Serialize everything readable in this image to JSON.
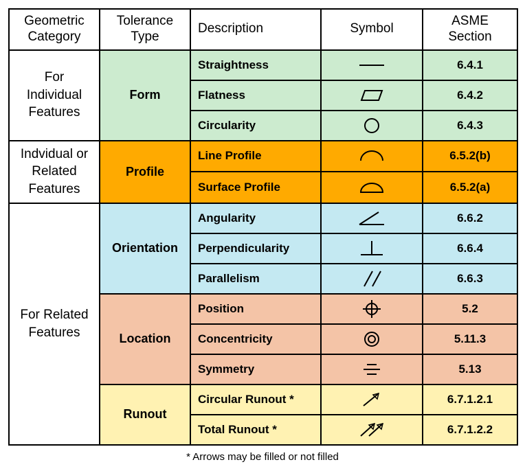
{
  "header": {
    "category": "Geometric Category",
    "type": "Tolerance Type",
    "description": "Description",
    "symbol": "Symbol",
    "section": "ASME Section"
  },
  "colors": {
    "green": "#ccebcf",
    "orange": "#ffaa00",
    "lightblue": "#c4e9f2",
    "peach": "#f4c4a7",
    "yellow": "#fff2b2",
    "header_bg": "#ffffff",
    "category_bg": "#ffffff",
    "border": "#000000",
    "text": "#000000"
  },
  "groups": [
    {
      "category": "For Individual Features",
      "type": "Form",
      "color_key": "green",
      "rows": [
        {
          "desc": "Straightness",
          "symbol": "straightness",
          "section": "6.4.1"
        },
        {
          "desc": "Flatness",
          "symbol": "flatness",
          "section": "6.4.2"
        },
        {
          "desc": "Circularity",
          "symbol": "circularity",
          "section": "6.4.3"
        }
      ]
    },
    {
      "category": "Indvidual or Related Features",
      "type": "Profile",
      "color_key": "orange",
      "rows": [
        {
          "desc": "Line Profile",
          "symbol": "lineprofile",
          "section": "6.5.2(b)"
        },
        {
          "desc": "Surface Profile",
          "symbol": "surfaceprofile",
          "section": "6.5.2(a)"
        }
      ]
    },
    {
      "category": "For Related Features",
      "types": [
        {
          "type": "Orientation",
          "color_key": "lightblue",
          "rows": [
            {
              "desc": "Angularity",
              "symbol": "angularity",
              "section": "6.6.2"
            },
            {
              "desc": "Perpendicularity",
              "symbol": "perpendicularity",
              "section": "6.6.4"
            },
            {
              "desc": "Parallelism",
              "symbol": "parallelism",
              "section": "6.6.3"
            }
          ]
        },
        {
          "type": "Location",
          "color_key": "peach",
          "rows": [
            {
              "desc": "Position",
              "symbol": "position",
              "section": "5.2"
            },
            {
              "desc": "Concentricity",
              "symbol": "concentricity",
              "section": "5.11.3"
            },
            {
              "desc": "Symmetry",
              "symbol": "symmetry",
              "section": "5.13"
            }
          ]
        },
        {
          "type": "Runout",
          "color_key": "yellow",
          "rows": [
            {
              "desc": "Circular Runout *",
              "symbol": "circularrunout",
              "section": "6.7.1.2.1"
            },
            {
              "desc": "Total Runout *",
              "symbol": "totalrunout",
              "section": "6.7.1.2.2"
            }
          ]
        }
      ]
    }
  ],
  "footnote": "* Arrows may be filled or not filled",
  "svg": {
    "stroke_width": 2,
    "thin_stroke_width": 1.5
  }
}
